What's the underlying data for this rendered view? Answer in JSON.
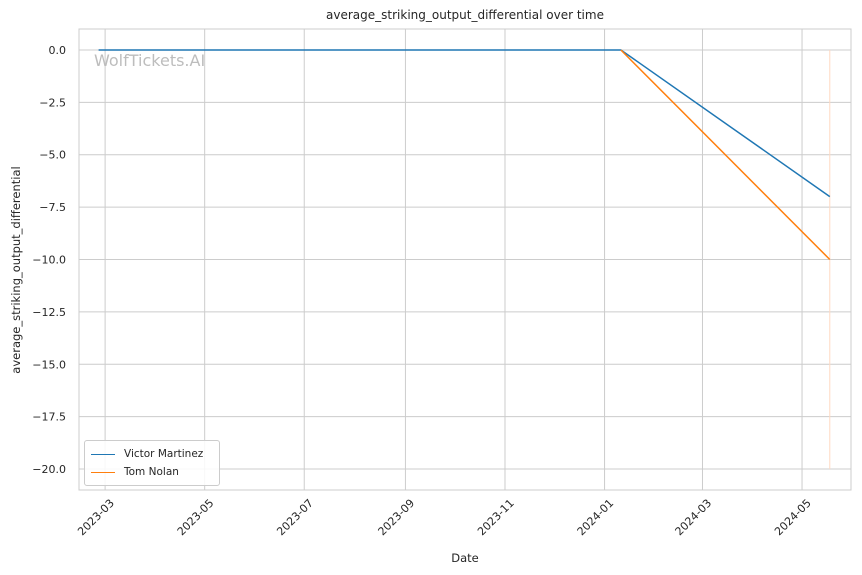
{
  "chart_data": {
    "type": "line",
    "title": "average_striking_output_differential over time",
    "xlabel": "Date",
    "ylabel": "average_striking_output_differential",
    "watermark": "WolfTickets.AI",
    "xlim": [
      "2023-02-13",
      "2024-05-31"
    ],
    "ylim": [
      -21,
      1
    ],
    "x_ticks": [
      "2023-03",
      "2023-05",
      "2023-07",
      "2023-09",
      "2023-11",
      "2024-01",
      "2024-03",
      "2024-05"
    ],
    "y_ticks": [
      0.0,
      -2.5,
      -5.0,
      -7.5,
      -10.0,
      -12.5,
      -15.0,
      -17.5,
      -20.0
    ],
    "y_tick_labels": [
      "0.0",
      "−2.5",
      "−5.0",
      "−7.5",
      "−10.0",
      "−12.5",
      "−15.0",
      "−17.5",
      "−20.0"
    ],
    "grid": true,
    "legend_position": "lower-left",
    "series": [
      {
        "name": "Victor Martinez",
        "color": "#1f77b4",
        "points": [
          {
            "x": "2023-02-25",
            "y": 0
          },
          {
            "x": "2024-01-11",
            "y": 0
          },
          {
            "x": "2024-05-18",
            "y": -7
          }
        ]
      },
      {
        "name": "Tom Nolan",
        "color": "#ff7f0e",
        "points": [
          {
            "x": "2024-01-11",
            "y": 0
          },
          {
            "x": "2024-05-18",
            "y": -10
          }
        ]
      }
    ],
    "vertical_line": {
      "x": "2024-05-18",
      "y_from": 0,
      "y_to": -20,
      "color": "#ffd9c2"
    }
  }
}
